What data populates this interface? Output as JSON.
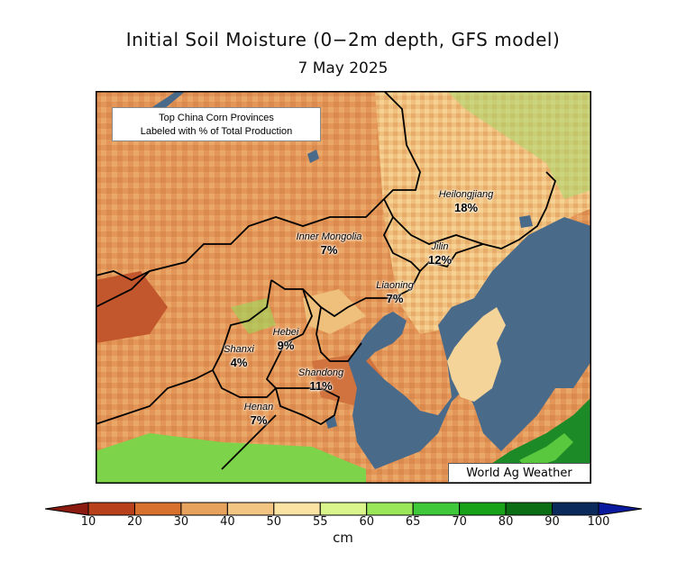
{
  "title": "Initial Soil Moisture (0−2m depth, GFS model)",
  "date": "7 May 2025",
  "legend_box": {
    "line1": "Top China Corn Provinces",
    "line2": "Labeled with % of Total Production"
  },
  "credit": "World Ag Weather",
  "provinces": [
    {
      "name": "Heilongjiang",
      "percent": "18%"
    },
    {
      "name": "Jilin",
      "percent": "12%"
    },
    {
      "name": "Inner Mongolia",
      "percent": "7%"
    },
    {
      "name": "Liaoning",
      "percent": "7%"
    },
    {
      "name": "Hebei",
      "percent": "9%"
    },
    {
      "name": "Shanxi",
      "percent": "4%"
    },
    {
      "name": "Shandong",
      "percent": "11%"
    },
    {
      "name": "Henan",
      "percent": "7%"
    }
  ],
  "colorbar": {
    "ticks": [
      "10",
      "20",
      "30",
      "40",
      "50",
      "55",
      "60",
      "65",
      "70",
      "80",
      "90",
      "100"
    ],
    "colors": [
      "#8b1a10",
      "#b8401a",
      "#d9712e",
      "#e7a25e",
      "#f2c582",
      "#fbe3a4",
      "#d9f58c",
      "#9ae85a",
      "#3fc83a",
      "#18a21a",
      "#0b6e14",
      "#0a2a5c",
      "#0a1a9e"
    ],
    "unit": "cm"
  },
  "colors": {
    "water": "#4a6a8a",
    "dry": "#d9804a",
    "medium": "#efb776",
    "wet": "#f5d49a",
    "green": "#4fd13a"
  }
}
